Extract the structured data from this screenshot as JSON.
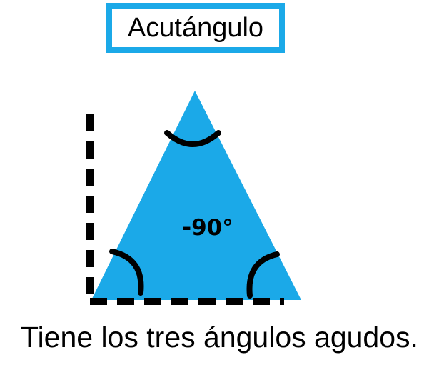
{
  "title": "Acutángulo",
  "angle_label": "-90°",
  "caption": "Tiene los tres ángulos agudos.",
  "colors": {
    "accent": "#1ba9e8",
    "stroke": "#000000",
    "background": "#ffffff"
  }
}
